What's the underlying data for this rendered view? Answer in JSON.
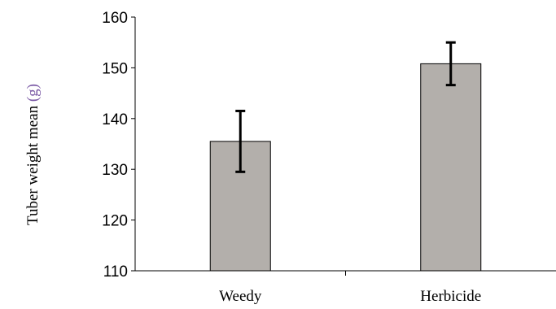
{
  "chart_data": {
    "type": "bar",
    "categories": [
      "Weedy",
      "Herbicide"
    ],
    "values": [
      135.5,
      150.8
    ],
    "errors": [
      6.0,
      4.2
    ],
    "ylabel": "Tuber  weight mean",
    "yunit": "(g)",
    "ylim": [
      110,
      160
    ],
    "yticks": [
      "110",
      "120",
      "130",
      "140",
      "150",
      "160"
    ],
    "grid": false,
    "colors": {
      "bar": "#b3afab",
      "bar_edge": "#000000",
      "error_bar": "#000000",
      "axis": "#000000",
      "unit_text": "#7b5aa6"
    }
  }
}
